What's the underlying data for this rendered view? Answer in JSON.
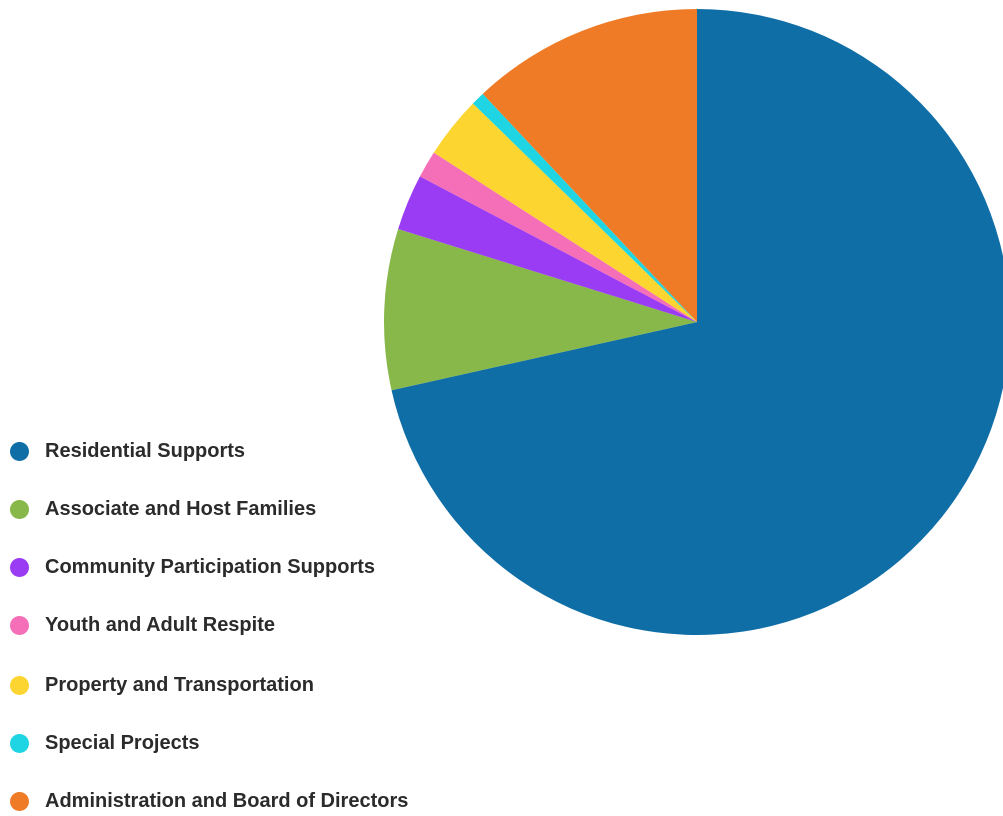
{
  "chart_data": {
    "type": "pie",
    "title": "",
    "start_angle": "top, clockwise",
    "legend_position": "bottom-left",
    "series": [
      {
        "labels": [
          "Residential Supports",
          "Associate and Host Families",
          "Community Participation Supports",
          "Youth and Adult Respite",
          "Property and Transportation",
          "Special Projects",
          "Administration and Board of Directors"
        ],
        "values": [
          71.5,
          8.3,
          2.9,
          1.4,
          3.2,
          0.7,
          12.0
        ],
        "colors": [
          "#0f6ea6",
          "#88b74a",
          "#9b3cf5",
          "#f56fb8",
          "#fcd531",
          "#1fd5e3",
          "#ef7b27"
        ]
      }
    ]
  }
}
